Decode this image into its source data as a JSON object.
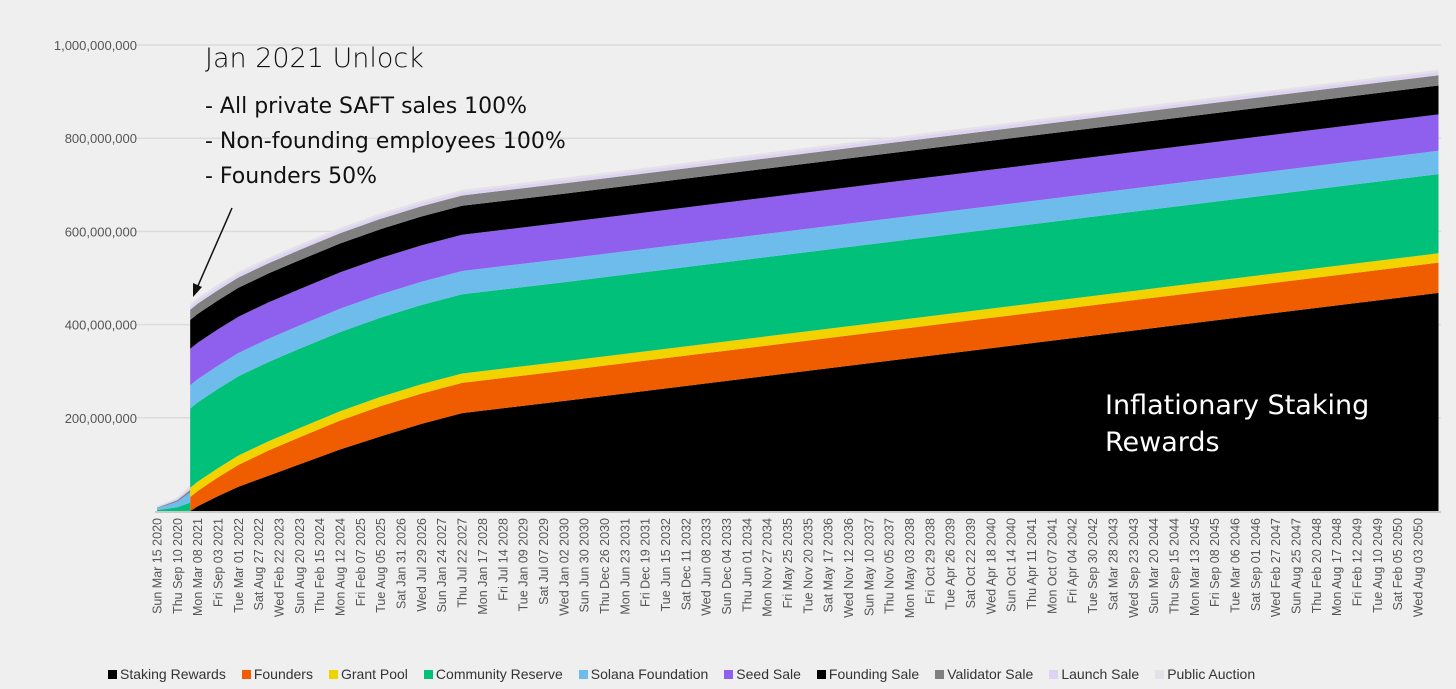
{
  "chart_data": {
    "type": "area",
    "stacked": true,
    "title": "",
    "xlabel": "",
    "ylabel": "",
    "ylim": [
      0,
      1000000000
    ],
    "y_ticks": [
      "200,000,000",
      "400,000,000",
      "600,000,000",
      "800,000,000",
      "1,000,000,000"
    ],
    "y_tick_values": [
      200000000,
      400000000,
      600000000,
      800000000,
      1000000000
    ],
    "grid": true,
    "legend_position": "bottom",
    "x_tick_labels": [
      "Sun Mar 15 2020",
      "Thu Sep 10 2020",
      "Mon Mar 08 2021",
      "Fri Sep 03 2021",
      "Tue Mar 01 2022",
      "Sat Aug 27 2022",
      "Wed Feb 22 2023",
      "Sun Aug 20 2023",
      "Thu Feb 15 2024",
      "Mon Aug 12 2024",
      "Fri Feb 07 2025",
      "Tue Aug 05 2025",
      "Sat Jan 31 2026",
      "Wed Jul 29 2026",
      "Sun Jan 24 2027",
      "Thu Jul 22 2027",
      "Mon Jan 17 2028",
      "Fri Jul 14 2028",
      "Tue Jan 09 2029",
      "Sat Jul 07 2029",
      "Wed Jan 02 2030",
      "Sun Jun 30 2030",
      "Thu Dec 26 2030",
      "Mon Jun 23 2031",
      "Fri Dec 19 2031",
      "Tue Jun 15 2032",
      "Sat Dec 11 2032",
      "Wed Jun 08 2033",
      "Sun Dec 04 2033",
      "Thu Jun 01 2034",
      "Mon Nov 27 2034",
      "Fri May 25 2035",
      "Tue Nov 20 2035",
      "Sat May 17 2036",
      "Wed Nov 12 2036",
      "Sun May 10 2037",
      "Thu Nov 05 2037",
      "Mon May 03 2038",
      "Fri Oct 29 2038",
      "Tue Apr 26 2039",
      "Sat Oct 22 2039",
      "Wed Apr 18 2040",
      "Sun Oct 14 2040",
      "Thu Apr 11 2041",
      "Mon Oct 07 2041",
      "Fri Apr 04 2042",
      "Tue Sep 30 2042",
      "Sat Mar 28 2043",
      "Wed Sep 23 2043",
      "Sun Mar 20 2044",
      "Thu Sep 15 2044",
      "Mon Mar 13 2045",
      "Fri Sep 08 2045",
      "Tue Mar 06 2046",
      "Sat Sep 01 2046",
      "Wed Feb 27 2047",
      "Sun Aug 25 2047",
      "Thu Feb 20 2048",
      "Mon Aug 17 2048",
      "Fri Feb 12 2049",
      "Tue Aug 10 2049",
      "Sat Feb 05 2050",
      "Wed Aug 03 2050"
    ],
    "x": [
      "2020-03-15",
      "2020-09-10",
      "2020-12-31",
      "2021-01-01",
      "2021-03-08",
      "2021-09-03",
      "2022-03-01",
      "2022-11-24",
      "2023-08-20",
      "2024-08-12",
      "2025-08-05",
      "2026-07-29",
      "2027-07-22",
      "2030-01-02",
      "2034-11-27",
      "2039-10-22",
      "2044-09-15",
      "2051-01-30"
    ],
    "value_unit_multiplier": 1000000,
    "series": [
      {
        "name": "Staking Rewards",
        "color": "#000000",
        "values": [
          0,
          0,
          0,
          0,
          10,
          32,
          52,
          76,
          100,
          132,
          160,
          187,
          210,
          236,
          290,
          344,
          398,
          468
        ]
      },
      {
        "name": "Founders",
        "color": "#ef5d00",
        "values": [
          0,
          0,
          0,
          30,
          33,
          40,
          47,
          54,
          58,
          62,
          65,
          65,
          65,
          65,
          65,
          65,
          65,
          65
        ]
      },
      {
        "name": "Grant Pool",
        "color": "#f2d300",
        "values": [
          0,
          0,
          0,
          20,
          20,
          20,
          20,
          20,
          20,
          20,
          20,
          20,
          20,
          20,
          20,
          20,
          20,
          20
        ]
      },
      {
        "name": "Community Reserve",
        "color": "#00c07a",
        "values": [
          2,
          8,
          18,
          170,
          170,
          170,
          170,
          170,
          170,
          170,
          170,
          170,
          170,
          170,
          170,
          170,
          170,
          170
        ]
      },
      {
        "name": "Solana Foundation",
        "color": "#6ebcec",
        "values": [
          4,
          12,
          22,
          50,
          50,
          50,
          50,
          50,
          50,
          50,
          50,
          50,
          50,
          50,
          50,
          50,
          50,
          50
        ]
      },
      {
        "name": "Seed Sale",
        "color": "#8f5fee",
        "values": [
          0,
          0,
          0,
          78,
          78,
          78,
          78,
          78,
          78,
          78,
          78,
          78,
          78,
          78,
          78,
          78,
          78,
          78
        ]
      },
      {
        "name": "Founding Sale",
        "color": "#000000",
        "values": [
          0,
          0,
          0,
          62,
          62,
          62,
          62,
          62,
          62,
          62,
          62,
          62,
          62,
          62,
          62,
          62,
          62,
          62
        ]
      },
      {
        "name": "Validator Sale",
        "color": "#808080",
        "values": [
          1,
          3,
          5,
          22,
          22,
          22,
          22,
          22,
          22,
          22,
          22,
          22,
          22,
          22,
          22,
          22,
          22,
          22
        ]
      },
      {
        "name": "Launch Sale",
        "color": "#ddd3f2",
        "values": [
          2,
          4,
          6,
          7,
          7,
          7,
          7,
          7,
          7,
          7,
          7,
          7,
          7,
          7,
          7,
          7,
          7,
          7
        ]
      },
      {
        "name": "Public Auction",
        "color": "#e4e2e8",
        "values": [
          1,
          2,
          4,
          5,
          5,
          5,
          5,
          5,
          5,
          5,
          5,
          5,
          5,
          5,
          5,
          5,
          5,
          5
        ]
      }
    ],
    "annotations": {
      "unlock_title": "Jan 2021 Unlock",
      "unlock_lines": [
        "- All private SAFT sales 100%",
        "- Non-founding employees 100%",
        "- Founders 50%"
      ],
      "staking_label_lines": [
        "Inflationary Staking",
        "Rewards"
      ]
    }
  }
}
